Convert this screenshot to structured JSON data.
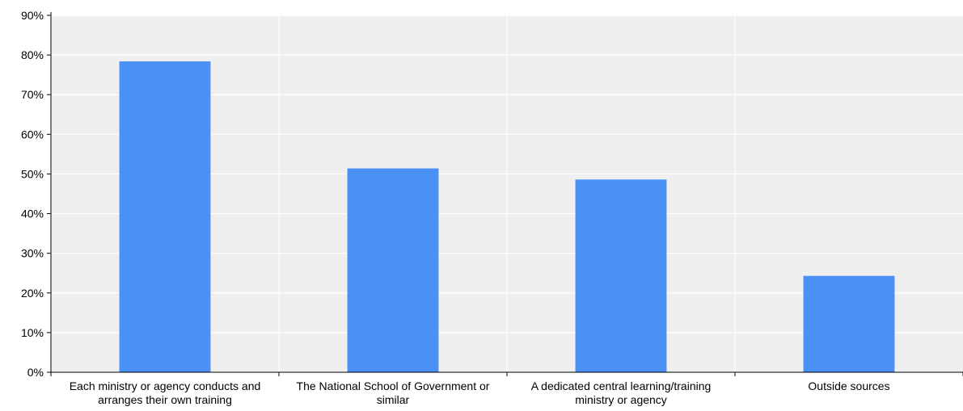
{
  "chart_data": {
    "type": "bar",
    "title": "",
    "xlabel": "",
    "ylabel": "",
    "categories": [
      [
        "Each ministry or agency conducts and",
        "arranges their own training"
      ],
      [
        "The National School of Government or",
        "similar"
      ],
      [
        "A dedicated central learning/training",
        "ministry or agency"
      ],
      [
        "Outside sources"
      ]
    ],
    "values": [
      78.4,
      51.4,
      48.6,
      24.3
    ],
    "ylim": [
      0,
      90
    ],
    "yticks": [
      0,
      10,
      20,
      30,
      40,
      50,
      60,
      70,
      80,
      90
    ],
    "ytick_format": "{v}%",
    "grid": true,
    "legend": "none",
    "colors": {
      "bar": "#4a90f5",
      "plot_background": "#efefef",
      "gridline": "#ffffff",
      "axis": "#000000"
    }
  }
}
